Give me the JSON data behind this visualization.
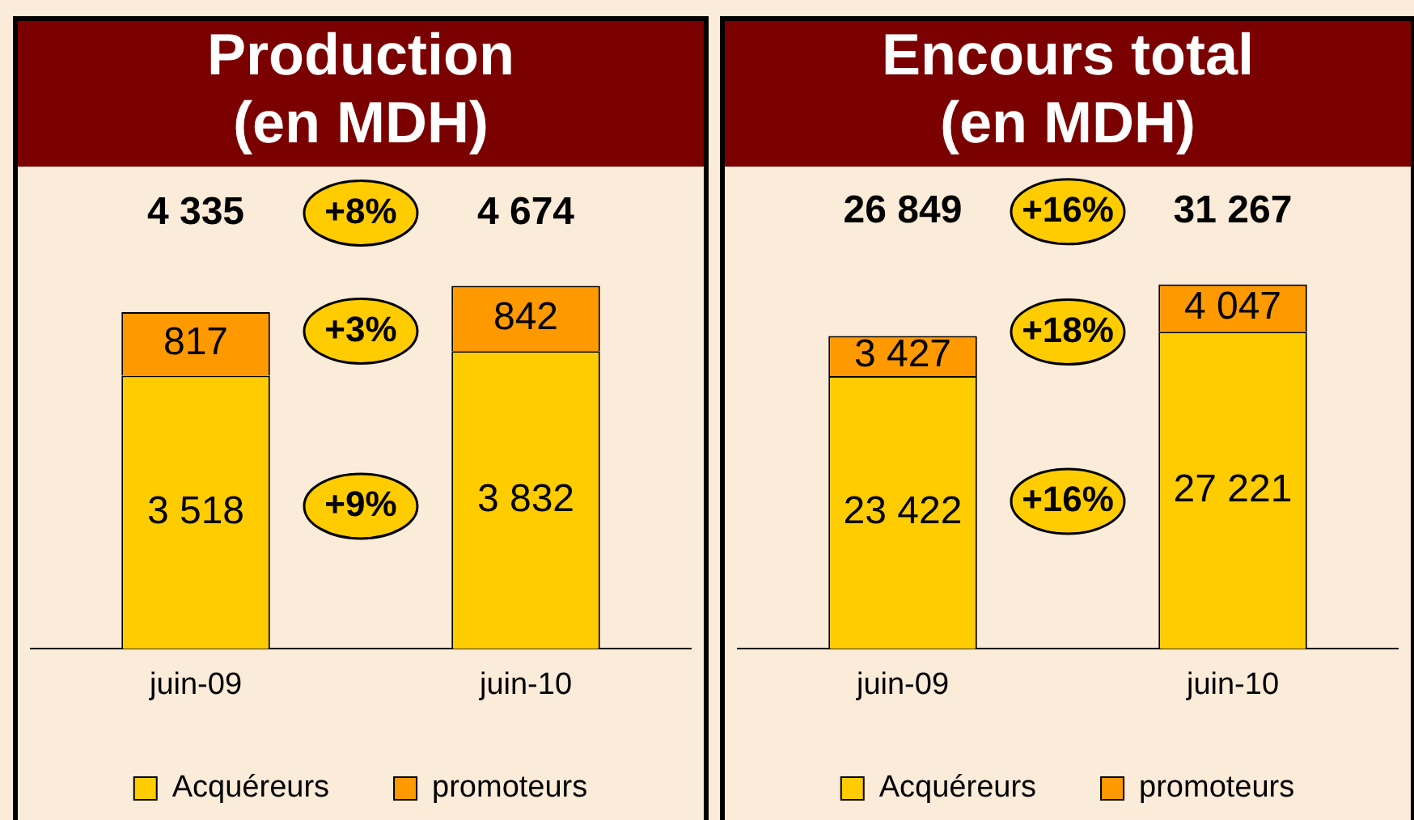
{
  "chart_data": [
    {
      "type": "bar",
      "title": "Production\n(en MDH)",
      "categories": [
        "juin-09",
        "juin-10"
      ],
      "stacked": true,
      "data_labels": true,
      "legend": "bottom",
      "grid": false,
      "series": [
        {
          "name": "Acquéreurs",
          "color": "#ffcc00",
          "values": [
            3518,
            3832
          ]
        },
        {
          "name": "promoteurs",
          "color": "#ff9900",
          "values": [
            817,
            842
          ]
        }
      ],
      "totals": [
        "4 335",
        "4 674"
      ],
      "annotations": [
        "+8%",
        "+3%",
        "+9%"
      ]
    },
    {
      "type": "bar",
      "title": "Encours total\n(en MDH)",
      "categories": [
        "juin-09",
        "juin-10"
      ],
      "stacked": true,
      "data_labels": true,
      "legend": "bottom",
      "grid": false,
      "series": [
        {
          "name": "Acquéreurs",
          "color": "#ffcc00",
          "values": [
            23422,
            27221
          ]
        },
        {
          "name": "promoteurs",
          "color": "#ff9900",
          "values": [
            3427,
            4047
          ]
        }
      ],
      "totals": [
        "26 849",
        "31 267"
      ],
      "annotations": [
        "+16%",
        "+18%",
        "+16%"
      ]
    }
  ]
}
